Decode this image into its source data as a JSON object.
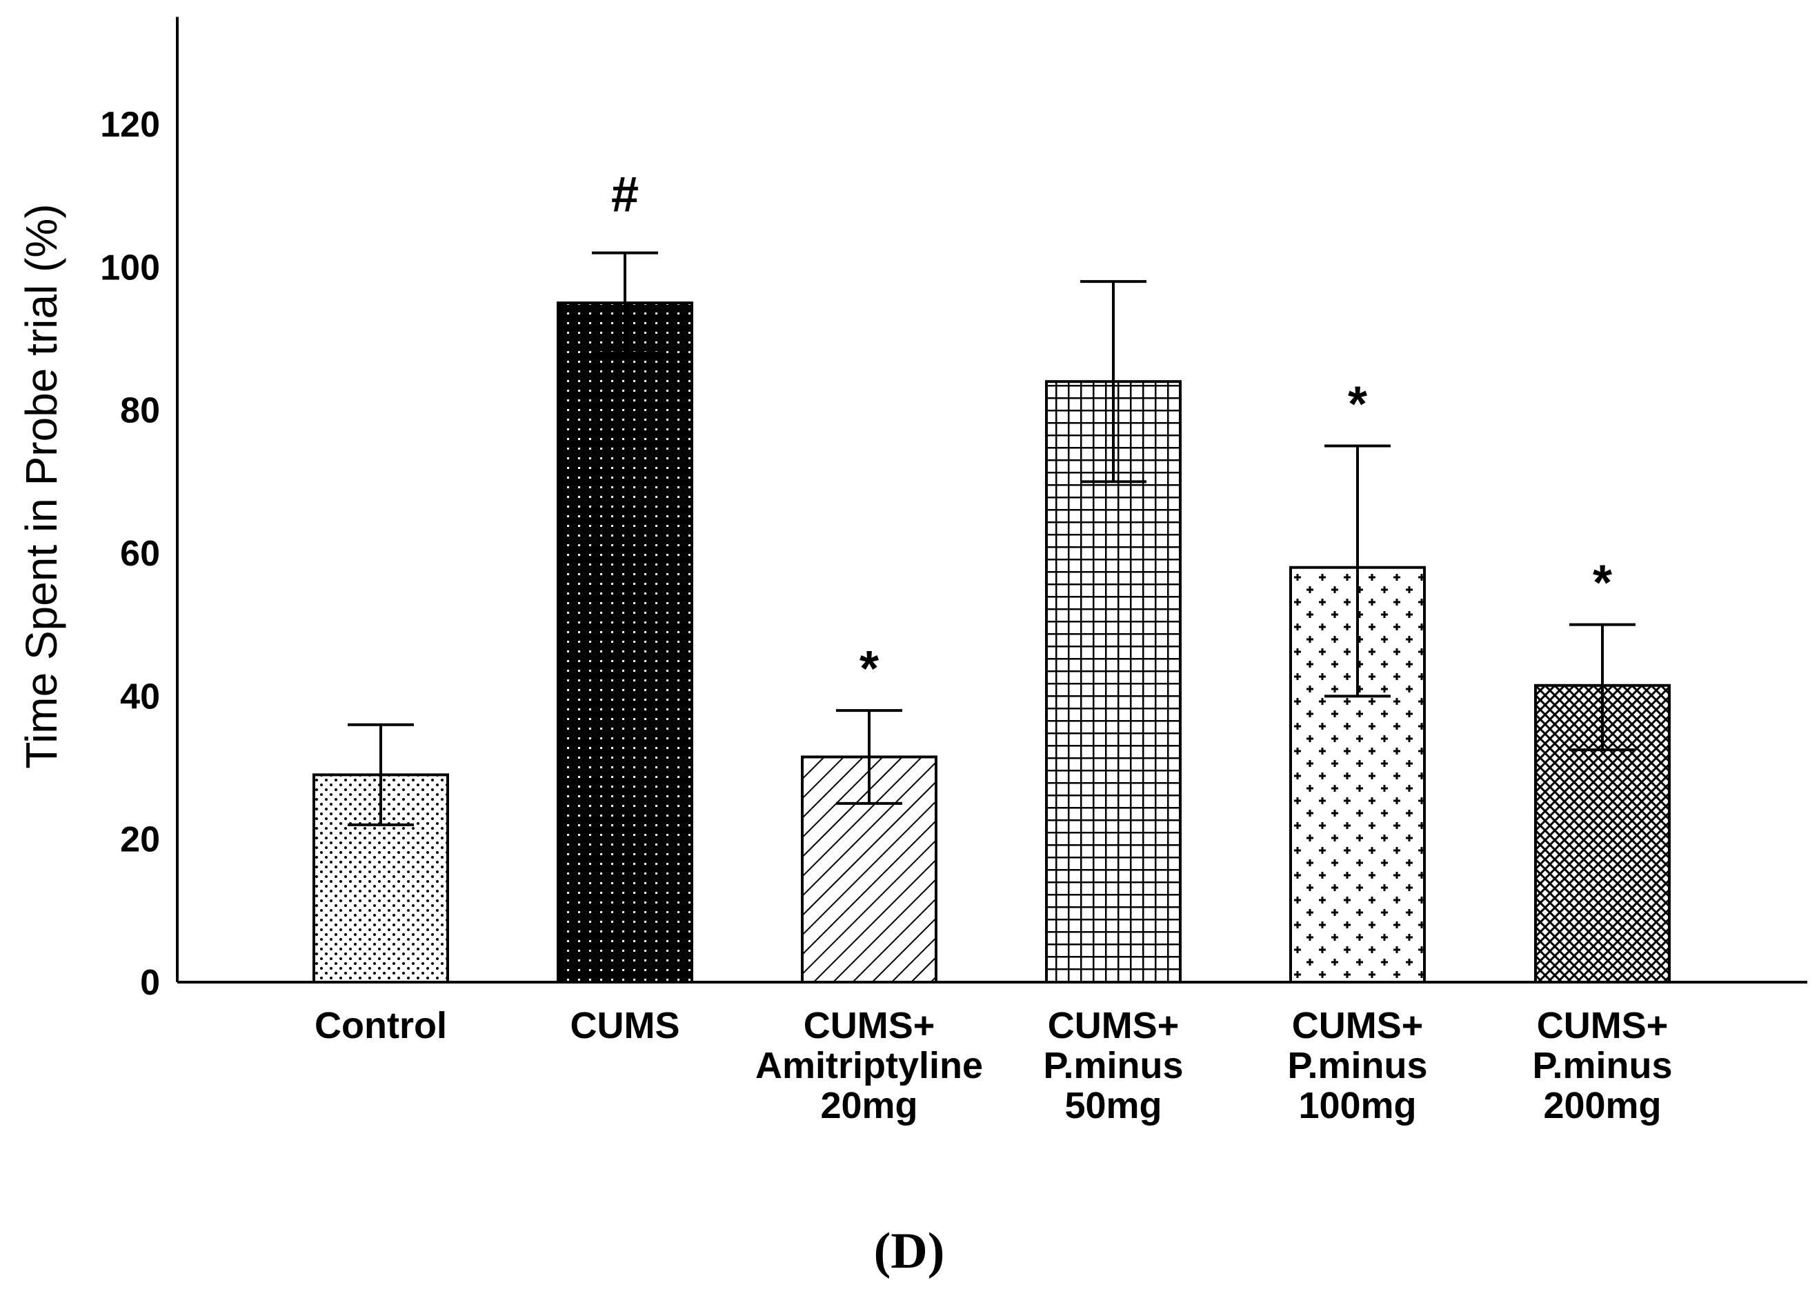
{
  "chart_data": {
    "type": "bar",
    "title": "",
    "xlabel": "",
    "ylabel": "Time Spent in Probe trial (%)",
    "ylim": [
      0,
      135
    ],
    "yticks": [
      0,
      20,
      40,
      60,
      80,
      100,
      120
    ],
    "grid": false,
    "categories": [
      [
        "Control"
      ],
      [
        "CUMS"
      ],
      [
        "CUMS+",
        "Amitriptyline",
        "20mg"
      ],
      [
        "CUMS+",
        "P.minus",
        "50mg"
      ],
      [
        "CUMS+",
        "P.minus",
        "100mg"
      ],
      [
        "CUMS+",
        "P.minus",
        "200mg"
      ]
    ],
    "values": [
      29,
      95,
      31.5,
      84,
      58,
      41.5
    ],
    "error_upper": [
      36,
      102,
      38,
      98,
      75,
      50
    ],
    "error_lower": [
      22,
      88,
      25,
      70,
      40,
      32.5
    ],
    "annotations": [
      "",
      "#",
      "*",
      "",
      "*",
      "*"
    ],
    "patterns": [
      "dots",
      "dense-dots",
      "diagonal-hatch",
      "grid",
      "crosses",
      "crosshatch"
    ],
    "panel_label": "(D)"
  }
}
